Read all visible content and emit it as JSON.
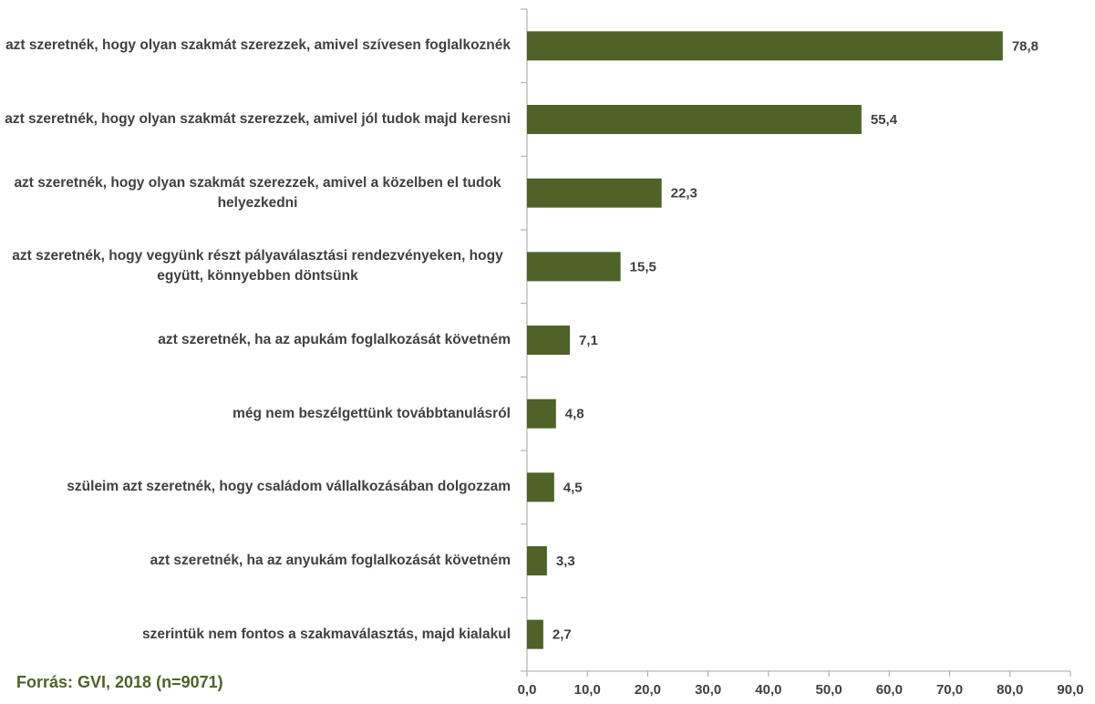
{
  "chart_data": {
    "type": "hbar",
    "categories": [
      "azt szeretnék, hogy olyan szakmát szerezzek, amivel szívesen foglalkoznék",
      "azt szeretnék, hogy olyan szakmát szerezzek, amivel jól tudok majd keresni",
      "azt szeretnék, hogy olyan szakmát szerezzek, amivel a közelben el tudok helyezkedni",
      "azt szeretnék, hogy vegyünk részt pályaválasztási rendezvényeken, hogy együtt, könnyebben döntsünk",
      "azt szeretnék, ha az apukám foglalkozását követném",
      "még nem beszélgettünk továbbtanulásról",
      "szüleim azt szeretnék, hogy családom vállalkozásában dolgozzam",
      "azt szeretnék, ha az anyukám foglalkozását követném",
      "szerintük nem fontos a szakmaválasztás, majd kialakul"
    ],
    "values": [
      78.8,
      55.4,
      22.3,
      15.5,
      7.1,
      4.8,
      4.5,
      3.3,
      2.7
    ],
    "value_labels": [
      "78,8",
      "55,4",
      "22,3",
      "15,5",
      "7,1",
      "4,8",
      "4,5",
      "3,3",
      "2,7"
    ],
    "color": "#4f6228",
    "xlim": [
      0,
      90
    ],
    "xticks": [
      {
        "value": 0,
        "label": "0,0"
      },
      {
        "value": 10,
        "label": "10,0"
      },
      {
        "value": 20,
        "label": "20,0"
      },
      {
        "value": 30,
        "label": "30,0"
      },
      {
        "value": 40,
        "label": "40,0"
      },
      {
        "value": 50,
        "label": "50,0"
      },
      {
        "value": 60,
        "label": "60,0"
      },
      {
        "value": 70,
        "label": "70,0"
      },
      {
        "value": 80,
        "label": "80,0"
      },
      {
        "value": 90,
        "label": "90,0"
      }
    ],
    "source": "Forrás: GVI, 2018 (n=9071)"
  }
}
